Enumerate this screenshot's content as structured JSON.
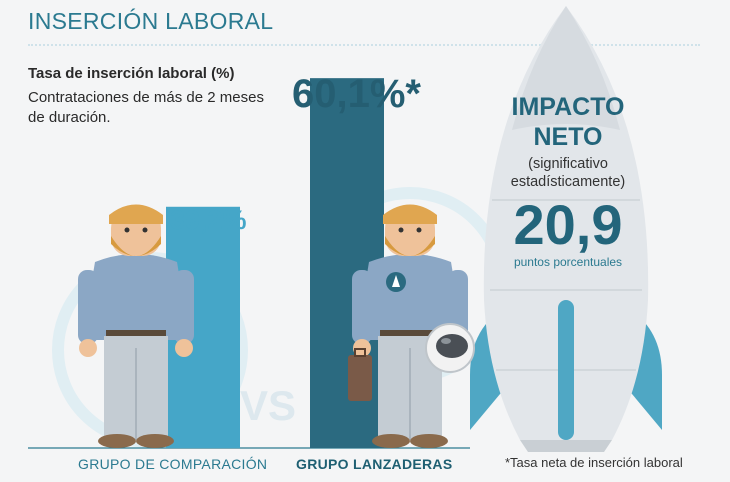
{
  "header": {
    "title": "INSERCIÓN LABORAL"
  },
  "intro": {
    "subtitle": "Tasa de inserción laboral (%)",
    "description": "Contrataciones de más de 2 meses de duración."
  },
  "vs_label": "VS",
  "impact": {
    "title_line1": "IMPACTO",
    "title_line2": "NETO",
    "significance": "(significativo estadísticamente)",
    "value": "20,9",
    "unit": "puntos porcentuales"
  },
  "footnote": "*Tasa neta de inserción laboral",
  "colors": {
    "comparison_bar": "#45a6c8",
    "lanzaderas_bar": "#2b6a80",
    "accent": "#2b7a90",
    "rocket_fin": "#4fa7c4",
    "rocket_body": "#e2e6ea"
  },
  "chart_data": {
    "type": "bar",
    "title": "",
    "categories": [
      "GRUPO DE COMPARACIÓN",
      "GRUPO LANZADERAS"
    ],
    "values": [
      39.2,
      60.1
    ],
    "value_labels": [
      "39,2%",
      "60,1%*"
    ],
    "xlabel": "",
    "ylabel": "",
    "ylim": [
      0,
      65
    ],
    "grid": false,
    "legend": "none"
  }
}
